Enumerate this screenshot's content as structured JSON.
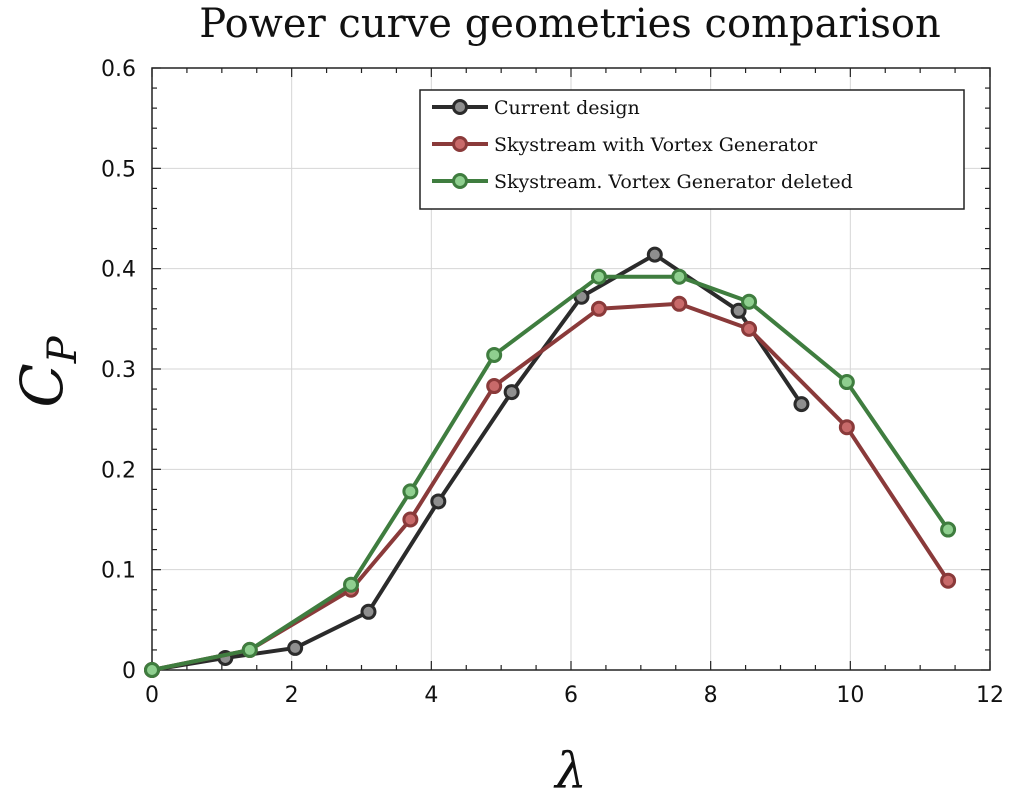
{
  "chart_data": {
    "type": "line",
    "title": "Power curve geometries comparison",
    "xlabel": "λ",
    "ylabel_main": "C",
    "ylabel_sub": "P",
    "xlim": [
      0,
      12
    ],
    "ylim": [
      0,
      0.6
    ],
    "xticks": [
      0,
      2,
      4,
      6,
      8,
      10,
      12
    ],
    "yticks": [
      0,
      0.1,
      0.2,
      0.3,
      0.4,
      0.5,
      0.6
    ],
    "xtick_labels": [
      "0",
      "2",
      "4",
      "6",
      "8",
      "10",
      "12"
    ],
    "ytick_labels": [
      "0",
      "0.1",
      "0.2",
      "0.3",
      "0.4",
      "0.5",
      "0.6"
    ],
    "grid": true,
    "legend_position": "top-right",
    "series": [
      {
        "name": "Current design",
        "color": "#2b2b2b",
        "marker_fill": "#8f8f8f",
        "x": [
          0,
          1.05,
          2.05,
          3.1,
          4.1,
          5.15,
          6.15,
          7.2,
          8.4,
          9.3
        ],
        "y": [
          0,
          0.012,
          0.022,
          0.058,
          0.168,
          0.277,
          0.372,
          0.414,
          0.358,
          0.265
        ]
      },
      {
        "name": "Skystream with Vortex Generator",
        "color": "#8a3a3a",
        "marker_fill": "#c86a6a",
        "x": [
          0,
          1.4,
          2.85,
          3.7,
          4.9,
          6.4,
          7.55,
          8.55,
          9.95,
          11.4
        ],
        "y": [
          0,
          0.02,
          0.08,
          0.15,
          0.283,
          0.36,
          0.365,
          0.34,
          0.242,
          0.089
        ]
      },
      {
        "name": "Skystream. Vortex Generator deleted",
        "color": "#3f7d3f",
        "marker_fill": "#8fcf8f",
        "x": [
          0,
          1.4,
          2.85,
          3.7,
          4.9,
          6.4,
          7.55,
          8.55,
          9.95,
          11.4
        ],
        "y": [
          0,
          0.02,
          0.085,
          0.178,
          0.314,
          0.392,
          0.392,
          0.367,
          0.287,
          0.14
        ]
      }
    ]
  }
}
